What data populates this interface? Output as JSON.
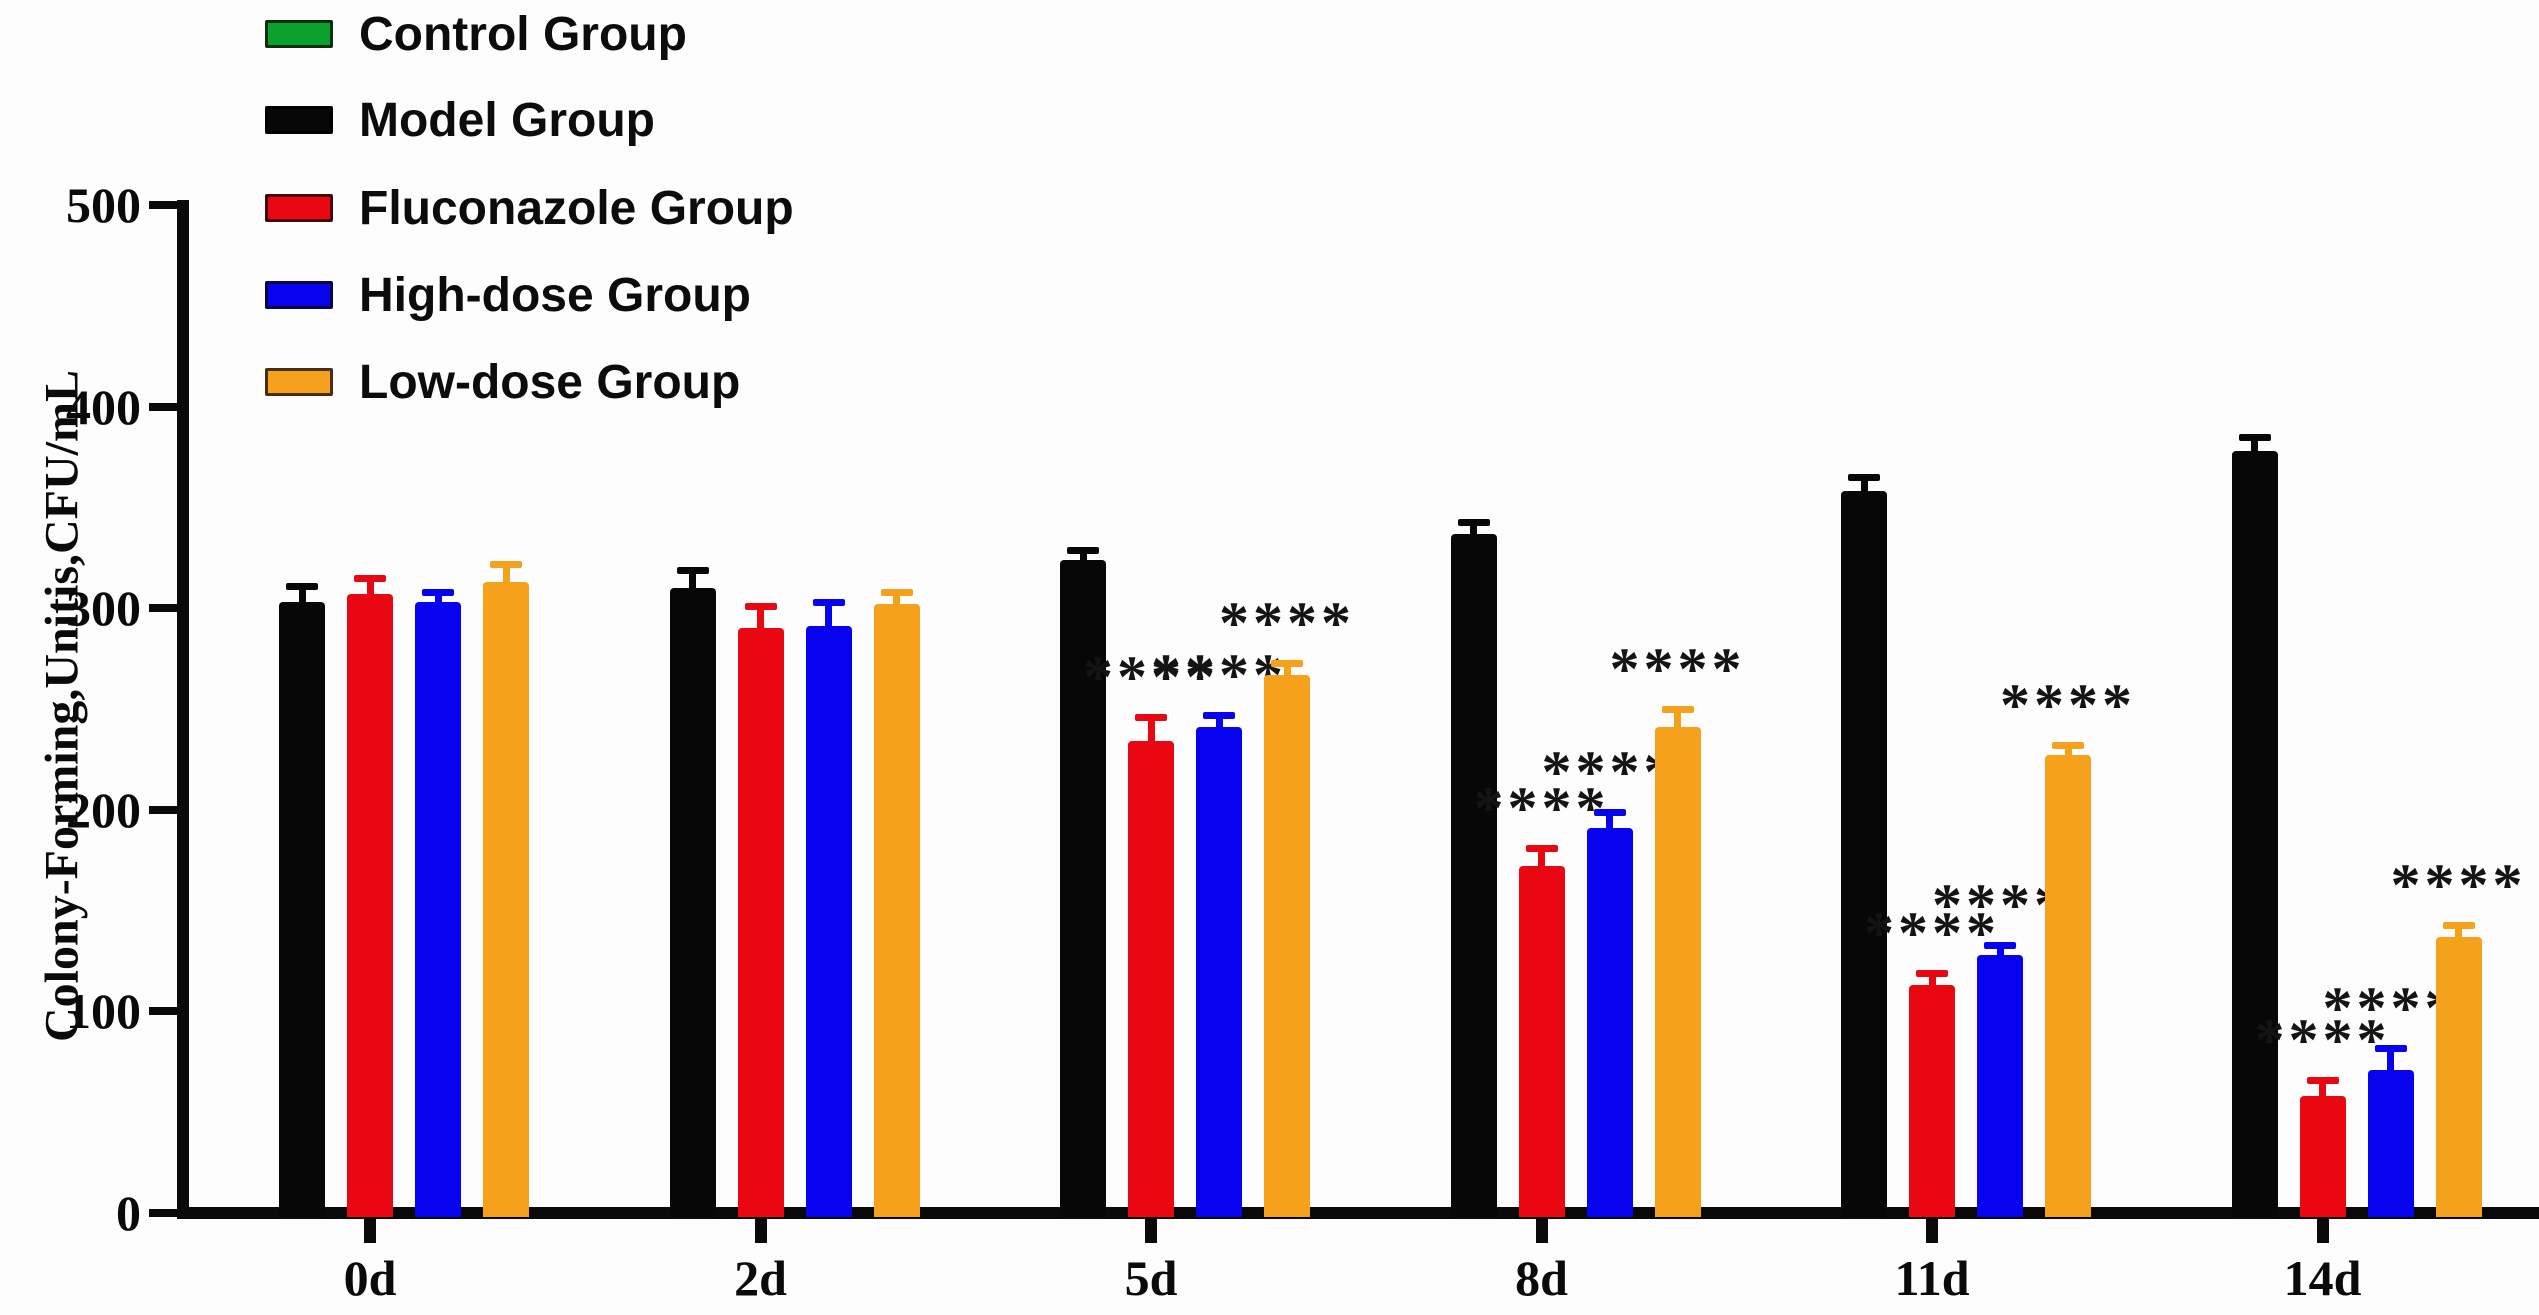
{
  "figure": {
    "background_color": "#fdfdfd",
    "axis_color": "#0a0a0a"
  },
  "chart_data": {
    "type": "bar",
    "title": "",
    "xlabel": "",
    "ylabel": "Colony-Forming,Unitis,CFU/mL",
    "ylim": [
      0,
      500
    ],
    "yticks": [
      0,
      100,
      200,
      300,
      400,
      500
    ],
    "grid": false,
    "legend_position": "top-left",
    "categories": [
      "0d",
      "2d",
      "5d",
      "8d",
      "11d",
      "14d"
    ],
    "series": [
      {
        "name": "Control Group",
        "color": "#0BA12D",
        "values": [
          0,
          0,
          0,
          0,
          0,
          0
        ],
        "errors": [
          0,
          0,
          0,
          0,
          0,
          0
        ],
        "significance": [
          "",
          "",
          "",
          "",
          "",
          ""
        ]
      },
      {
        "name": "Model Group",
        "color": "#070707",
        "values": [
          303,
          310,
          324,
          337,
          358,
          378
        ],
        "errors": [
          7,
          8,
          4,
          5,
          6,
          6
        ],
        "significance": [
          "",
          "",
          "",
          "",
          "",
          ""
        ]
      },
      {
        "name": "Fluconazole Group",
        "color": "#E90712",
        "values": [
          307,
          290,
          234,
          172,
          113,
          58
        ],
        "errors": [
          7,
          10,
          11,
          8,
          5,
          7
        ],
        "significance": [
          "",
          "",
          "****",
          "****",
          "****",
          "****"
        ]
      },
      {
        "name": "High-dose Group",
        "color": "#0803EE",
        "values": [
          303,
          291,
          241,
          191,
          128,
          71
        ],
        "errors": [
          4,
          11,
          5,
          7,
          4,
          10
        ],
        "significance": [
          "",
          "",
          "****",
          "****",
          "****",
          "****"
        ]
      },
      {
        "name": "Low-dose Group",
        "color": "#F6A11C",
        "values": [
          313,
          302,
          267,
          241,
          227,
          137
        ],
        "errors": [
          8,
          5,
          5,
          8,
          4,
          5
        ],
        "significance": [
          "",
          "",
          "****",
          "****",
          "****",
          "****"
        ]
      }
    ]
  }
}
